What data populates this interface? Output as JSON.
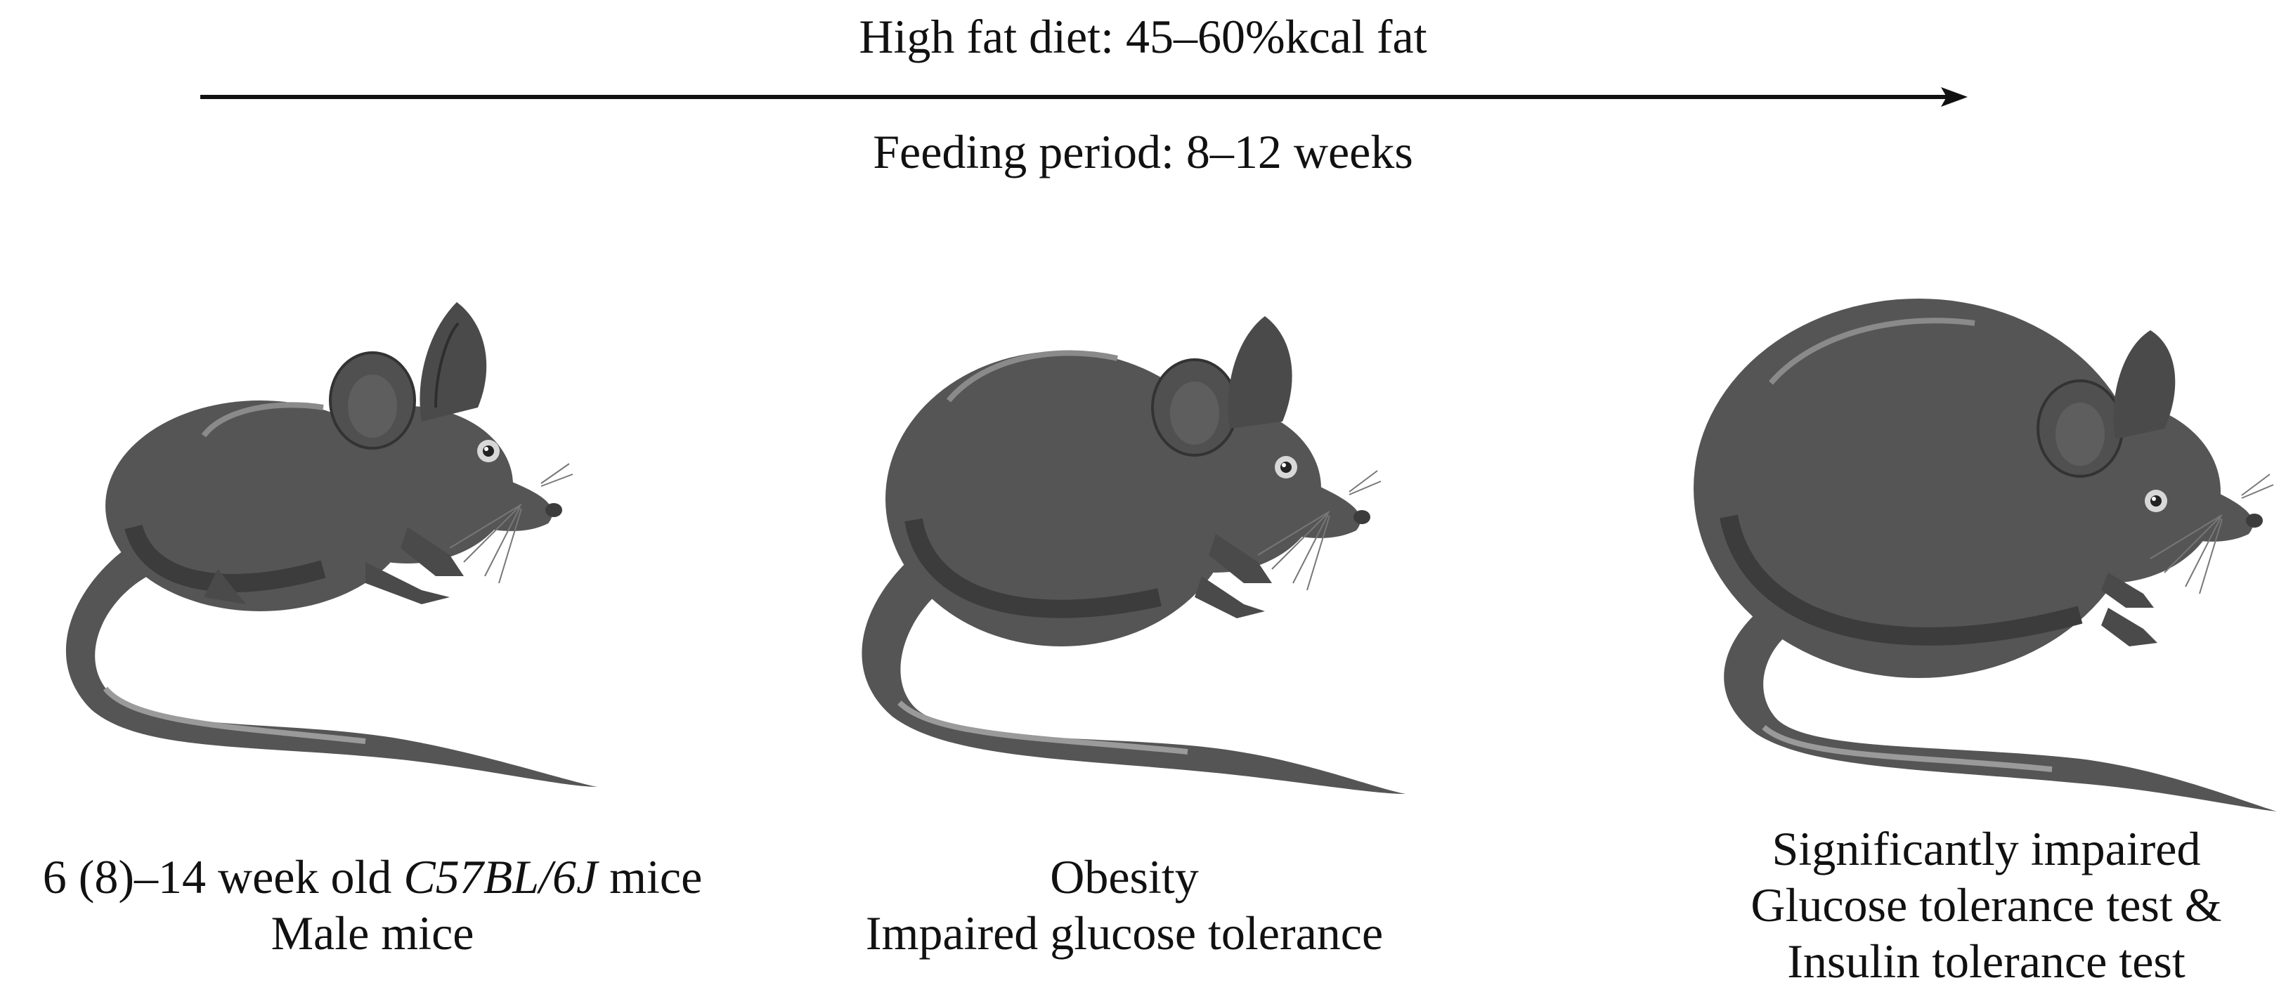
{
  "timeline": {
    "diet_label": "High fat diet: 45–60%kcal fat",
    "period_label": "Feeding period: 8–12 weeks"
  },
  "stages": [
    {
      "line1_prefix": "6 (8)–14 week old ",
      "line1_strain": "C57BL/6J",
      "line1_suffix": " mice",
      "line2": "Male mice"
    },
    {
      "line1": "Obesity",
      "line2": "Impaired glucose tolerance"
    },
    {
      "line1": "Significantly impaired",
      "line2": "Glucose tolerance test &",
      "line3": "Insulin tolerance test"
    }
  ],
  "colors": {
    "mouse_body": "#555555",
    "mouse_shadow": "#3c3c3c",
    "mouse_highlight": "#9a9a9a",
    "arrow": "#111111"
  }
}
